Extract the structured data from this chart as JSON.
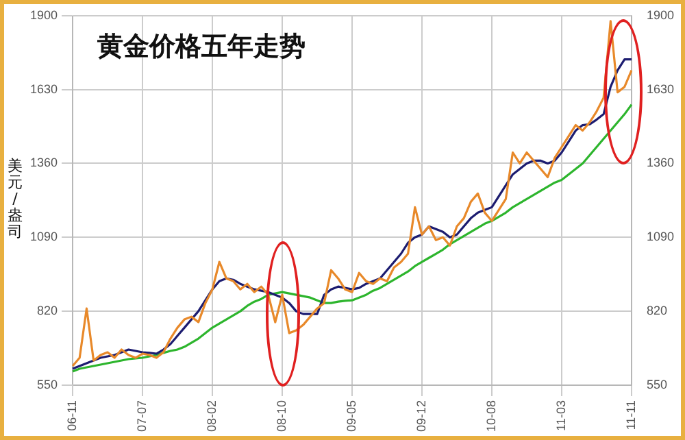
{
  "chart_data": {
    "type": "line",
    "title": "黄金价格五年走势",
    "ylabel": "美元/盎司",
    "categories": [
      "06-11",
      null,
      null,
      null,
      null,
      null,
      null,
      null,
      null,
      null,
      "07-07",
      null,
      null,
      null,
      null,
      null,
      null,
      null,
      null,
      null,
      "08-02",
      null,
      null,
      null,
      null,
      null,
      null,
      null,
      null,
      null,
      "08-10",
      null,
      null,
      null,
      null,
      null,
      null,
      null,
      null,
      null,
      "09-05",
      null,
      null,
      null,
      null,
      null,
      null,
      null,
      null,
      null,
      "09-12",
      null,
      null,
      null,
      null,
      null,
      null,
      null,
      null,
      null,
      "10-08",
      null,
      null,
      null,
      null,
      null,
      null,
      null,
      null,
      null,
      "11-03",
      null,
      null,
      null,
      null,
      null,
      null,
      null,
      null,
      null,
      "11-11"
    ],
    "series": [
      {
        "color": "#e8892a",
        "values": [
          620,
          650,
          830,
          640,
          660,
          670,
          650,
          680,
          660,
          650,
          665,
          660,
          650,
          670,
          720,
          760,
          790,
          800,
          780,
          850,
          900,
          1000,
          940,
          930,
          900,
          920,
          890,
          910,
          880,
          780,
          880,
          740,
          750,
          770,
          800,
          830,
          850,
          970,
          940,
          900,
          890,
          960,
          930,
          920,
          940,
          930,
          980,
          1000,
          1030,
          1200,
          1100,
          1130,
          1080,
          1090,
          1060,
          1130,
          1160,
          1220,
          1250,
          1180,
          1150,
          1190,
          1230,
          1400,
          1360,
          1400,
          1370,
          1340,
          1310,
          1380,
          1420,
          1460,
          1500,
          1480,
          1510,
          1550,
          1600,
          1880,
          1620,
          1640,
          1700
        ]
      },
      {
        "color": "#1c1c70",
        "values": [
          610,
          620,
          630,
          640,
          650,
          655,
          660,
          670,
          680,
          675,
          670,
          668,
          665,
          680,
          700,
          730,
          760,
          790,
          820,
          860,
          900,
          930,
          940,
          935,
          920,
          910,
          900,
          895,
          890,
          880,
          870,
          850,
          820,
          810,
          810,
          810,
          880,
          900,
          910,
          905,
          900,
          905,
          920,
          930,
          940,
          970,
          1000,
          1030,
          1070,
          1090,
          1100,
          1130,
          1120,
          1110,
          1090,
          1100,
          1130,
          1160,
          1180,
          1190,
          1200,
          1240,
          1280,
          1320,
          1340,
          1360,
          1370,
          1370,
          1360,
          1370,
          1400,
          1440,
          1480,
          1500,
          1503,
          1520,
          1540,
          1640,
          1700,
          1740,
          1740
        ]
      },
      {
        "color": "#2db52d",
        "values": [
          600,
          610,
          615,
          620,
          625,
          630,
          635,
          640,
          645,
          648,
          650,
          655,
          660,
          668,
          675,
          680,
          690,
          705,
          720,
          740,
          760,
          775,
          790,
          805,
          820,
          840,
          855,
          865,
          880,
          885,
          890,
          885,
          880,
          875,
          870,
          860,
          850,
          850,
          855,
          858,
          860,
          870,
          880,
          895,
          905,
          920,
          935,
          950,
          965,
          985,
          1000,
          1015,
          1030,
          1045,
          1065,
          1080,
          1095,
          1110,
          1125,
          1140,
          1150,
          1165,
          1180,
          1200,
          1215,
          1230,
          1245,
          1260,
          1275,
          1290,
          1300,
          1320,
          1340,
          1360,
          1390,
          1420,
          1450,
          1480,
          1510,
          1540,
          1575
        ]
      }
    ],
    "ylim": [
      550,
      1900
    ],
    "yticks": [
      550,
      820,
      1090,
      1360,
      1630,
      1900
    ],
    "y2lim": [
      550,
      1900
    ],
    "y2ticks": [
      550,
      820,
      1090,
      1360,
      1630,
      1900
    ],
    "grid": true,
    "legend": false,
    "marker": "none",
    "line_style": "solid"
  }
}
